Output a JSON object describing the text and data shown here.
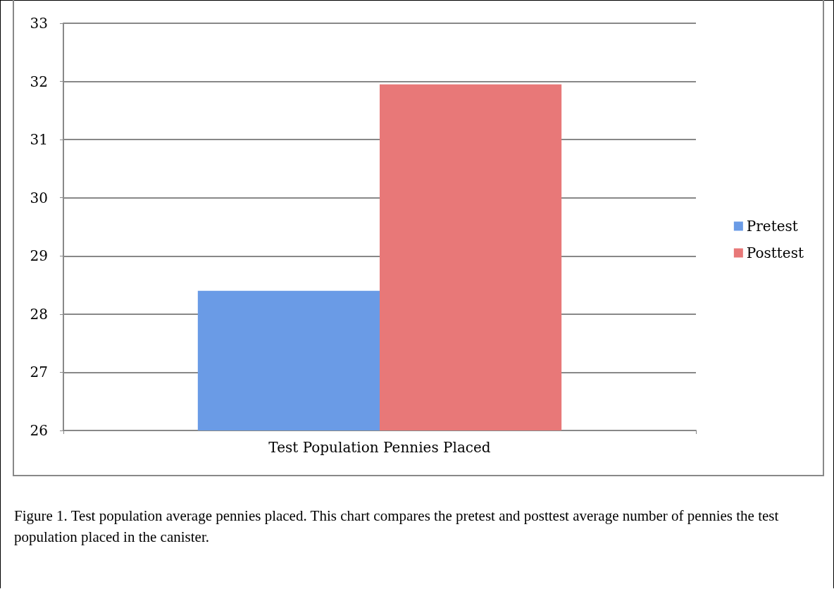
{
  "chart_data": {
    "type": "bar",
    "categories": [
      "Test Population Pennies Placed"
    ],
    "series": [
      {
        "name": "Pretest",
        "color": "#6a9be6",
        "values": [
          28.4
        ]
      },
      {
        "name": "Posttest",
        "color": "#e87878",
        "values": [
          31.95
        ]
      }
    ],
    "ylim": [
      26,
      33
    ],
    "yticks": [
      26,
      27,
      28,
      29,
      30,
      31,
      32,
      33
    ],
    "grid": "y",
    "legend": "right",
    "annotations": [
      "Figure 1. Test population average pennies placed. This chart compares the pretest and posttest average number of pennies the test population placed in the canister."
    ]
  }
}
